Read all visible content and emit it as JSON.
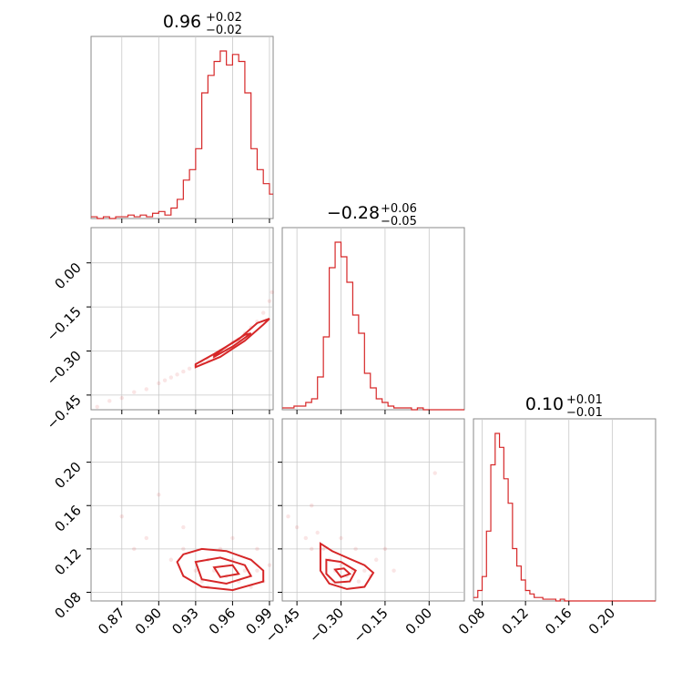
{
  "chart_data": {
    "type": "corner",
    "color": "#d62728",
    "parameters": [
      {
        "index": 0,
        "title_median": "0.96",
        "title_plus": "+0.02",
        "title_minus": "−0.02",
        "range": [
          0.845,
          0.993
        ],
        "ticks": [
          "0.87",
          "0.90",
          "0.93",
          "0.96",
          "0.99"
        ],
        "tick_values": [
          0.87,
          0.9,
          0.93,
          0.96,
          0.99
        ],
        "hist_edges": [
          0.845,
          0.85,
          0.855,
          0.86,
          0.865,
          0.87,
          0.875,
          0.88,
          0.885,
          0.89,
          0.895,
          0.9,
          0.905,
          0.91,
          0.915,
          0.92,
          0.925,
          0.93,
          0.935,
          0.94,
          0.945,
          0.95,
          0.955,
          0.96,
          0.965,
          0.97,
          0.975,
          0.98,
          0.985,
          0.99,
          0.993
        ],
        "hist_counts": [
          1,
          0,
          1,
          0,
          1,
          1,
          2,
          1,
          2,
          1,
          3,
          4,
          2,
          6,
          11,
          22,
          28,
          40,
          72,
          82,
          90,
          96,
          88,
          94,
          90,
          72,
          40,
          28,
          20,
          14
        ]
      },
      {
        "index": 1,
        "title_median": "−0.28",
        "title_plus": "+0.06",
        "title_minus": "−0.05",
        "range": [
          -0.5,
          0.12
        ],
        "ticks": [
          "−0.45",
          "−0.30",
          "−0.15",
          "0.00"
        ],
        "tick_values": [
          -0.45,
          -0.3,
          -0.15,
          0.0
        ],
        "hist_edges": [
          -0.5,
          -0.48,
          -0.46,
          -0.44,
          -0.42,
          -0.4,
          -0.38,
          -0.36,
          -0.34,
          -0.32,
          -0.3,
          -0.28,
          -0.26,
          -0.24,
          -0.22,
          -0.2,
          -0.18,
          -0.16,
          -0.14,
          -0.12,
          -0.1,
          -0.08,
          -0.06,
          -0.04,
          -0.02,
          0.0,
          0.02,
          0.04,
          0.06,
          0.08,
          0.1,
          0.12
        ],
        "hist_counts": [
          1,
          1,
          2,
          2,
          4,
          6,
          18,
          40,
          78,
          92,
          84,
          70,
          52,
          42,
          20,
          12,
          6,
          4,
          2,
          1,
          1,
          1,
          0,
          1,
          0,
          0,
          0,
          0,
          0,
          0,
          0
        ]
      },
      {
        "index": 2,
        "title_median": "0.10",
        "title_plus": "+0.01",
        "title_minus": "−0.01",
        "range": [
          0.072,
          0.24
        ],
        "ticks": [
          "0.08",
          "0.12",
          "0.16",
          "0.20"
        ],
        "tick_values": [
          0.08,
          0.12,
          0.16,
          0.2
        ],
        "hist_edges": [
          0.072,
          0.076,
          0.08,
          0.084,
          0.088,
          0.092,
          0.096,
          0.1,
          0.104,
          0.108,
          0.112,
          0.116,
          0.12,
          0.124,
          0.128,
          0.132,
          0.136,
          0.14,
          0.144,
          0.148,
          0.152,
          0.156,
          0.16,
          0.164,
          0.168,
          0.172,
          0.176,
          0.18,
          0.184,
          0.188,
          0.192,
          0.196,
          0.2,
          0.204,
          0.208,
          0.212,
          0.216,
          0.22,
          0.224,
          0.228,
          0.232,
          0.236,
          0.24
        ],
        "hist_counts": [
          2,
          6,
          14,
          40,
          78,
          96,
          88,
          70,
          56,
          30,
          20,
          12,
          6,
          4,
          2,
          2,
          1,
          1,
          1,
          0,
          1,
          0,
          0,
          0,
          0,
          0,
          0,
          0,
          0,
          0,
          0,
          0,
          0,
          0,
          0,
          0,
          0,
          0,
          0,
          0,
          0,
          0
        ]
      }
    ],
    "pairs": [
      {
        "x_param": 0,
        "y_param": 1,
        "samples": [
          [
            0.85,
            -0.49
          ],
          [
            0.86,
            -0.47
          ],
          [
            0.87,
            -0.46
          ],
          [
            0.88,
            -0.44
          ],
          [
            0.89,
            -0.43
          ],
          [
            0.9,
            -0.41
          ],
          [
            0.905,
            -0.4
          ],
          [
            0.91,
            -0.39
          ],
          [
            0.915,
            -0.38
          ],
          [
            0.92,
            -0.37
          ],
          [
            0.925,
            -0.36
          ],
          [
            0.93,
            -0.35
          ],
          [
            0.935,
            -0.34
          ],
          [
            0.94,
            -0.33
          ],
          [
            0.945,
            -0.32
          ],
          [
            0.95,
            -0.3
          ],
          [
            0.955,
            -0.29
          ],
          [
            0.96,
            -0.27
          ],
          [
            0.965,
            -0.26
          ],
          [
            0.97,
            -0.24
          ],
          [
            0.975,
            -0.22
          ],
          [
            0.98,
            -0.2
          ],
          [
            0.985,
            -0.17
          ],
          [
            0.99,
            -0.13
          ],
          [
            0.992,
            -0.1
          ]
        ],
        "contours": [
          [
            [
              0.93,
              -0.355
            ],
            [
              0.95,
              -0.32
            ],
            [
              0.97,
              -0.265
            ],
            [
              0.985,
              -0.21
            ],
            [
              0.99,
              -0.19
            ],
            [
              0.98,
              -0.205
            ],
            [
              0.965,
              -0.26
            ],
            [
              0.945,
              -0.31
            ],
            [
              0.93,
              -0.345
            ]
          ],
          [
            [
              0.945,
              -0.32
            ],
            [
              0.96,
              -0.285
            ],
            [
              0.975,
              -0.24
            ],
            [
              0.97,
              -0.245
            ],
            [
              0.955,
              -0.285
            ],
            [
              0.945,
              -0.315
            ]
          ]
        ]
      },
      {
        "x_param": 0,
        "y_param": 2,
        "samples": [
          [
            0.87,
            0.15
          ],
          [
            0.88,
            0.12
          ],
          [
            0.89,
            0.13
          ],
          [
            0.91,
            0.11
          ],
          [
            0.92,
            0.12
          ],
          [
            0.93,
            0.1
          ],
          [
            0.935,
            0.09
          ],
          [
            0.94,
            0.11
          ],
          [
            0.945,
            0.1
          ],
          [
            0.95,
            0.12
          ],
          [
            0.955,
            0.095
          ],
          [
            0.96,
            0.11
          ],
          [
            0.965,
            0.09
          ],
          [
            0.97,
            0.1
          ],
          [
            0.975,
            0.085
          ],
          [
            0.98,
            0.1
          ],
          [
            0.985,
            0.09
          ],
          [
            0.99,
            0.105
          ],
          [
            0.9,
            0.17
          ],
          [
            0.92,
            0.14
          ],
          [
            0.96,
            0.13
          ],
          [
            0.98,
            0.12
          ],
          [
            0.94,
            0.085
          ]
        ],
        "contours": [
          [
            [
              0.92,
              0.115
            ],
            [
              0.935,
              0.12
            ],
            [
              0.955,
              0.118
            ],
            [
              0.975,
              0.11
            ],
            [
              0.985,
              0.1
            ],
            [
              0.985,
              0.09
            ],
            [
              0.96,
              0.082
            ],
            [
              0.935,
              0.085
            ],
            [
              0.92,
              0.095
            ],
            [
              0.915,
              0.108
            ]
          ],
          [
            [
              0.93,
              0.108
            ],
            [
              0.95,
              0.112
            ],
            [
              0.97,
              0.105
            ],
            [
              0.975,
              0.095
            ],
            [
              0.955,
              0.088
            ],
            [
              0.935,
              0.092
            ]
          ],
          [
            [
              0.945,
              0.103
            ],
            [
              0.96,
              0.105
            ],
            [
              0.965,
              0.097
            ],
            [
              0.95,
              0.094
            ]
          ]
        ]
      },
      {
        "x_param": 1,
        "y_param": 2,
        "samples": [
          [
            -0.48,
            0.15
          ],
          [
            -0.45,
            0.14
          ],
          [
            -0.42,
            0.13
          ],
          [
            -0.4,
            0.12
          ],
          [
            -0.38,
            0.135
          ],
          [
            -0.36,
            0.12
          ],
          [
            -0.34,
            0.11
          ],
          [
            -0.32,
            0.1
          ],
          [
            -0.3,
            0.105
          ],
          [
            -0.28,
            0.095
          ],
          [
            -0.26,
            0.1
          ],
          [
            -0.24,
            0.09
          ],
          [
            -0.22,
            0.1
          ],
          [
            -0.2,
            0.095
          ],
          [
            -0.18,
            0.11
          ],
          [
            -0.15,
            0.12
          ],
          [
            -0.12,
            0.1
          ],
          [
            -0.4,
            0.16
          ],
          [
            -0.3,
            0.13
          ],
          [
            -0.25,
            0.12
          ],
          [
            0.02,
            0.19
          ]
        ],
        "contours": [
          [
            [
              -0.37,
              0.125
            ],
            [
              -0.33,
              0.118
            ],
            [
              -0.28,
              0.112
            ],
            [
              -0.22,
              0.105
            ],
            [
              -0.19,
              0.098
            ],
            [
              -0.22,
              0.085
            ],
            [
              -0.28,
              0.083
            ],
            [
              -0.34,
              0.088
            ],
            [
              -0.37,
              0.1
            ]
          ],
          [
            [
              -0.35,
              0.11
            ],
            [
              -0.3,
              0.108
            ],
            [
              -0.25,
              0.1
            ],
            [
              -0.27,
              0.09
            ],
            [
              -0.32,
              0.089
            ],
            [
              -0.35,
              0.097
            ]
          ],
          [
            [
              -0.32,
              0.101
            ],
            [
              -0.29,
              0.102
            ],
            [
              -0.27,
              0.097
            ],
            [
              -0.3,
              0.094
            ]
          ]
        ]
      }
    ]
  }
}
